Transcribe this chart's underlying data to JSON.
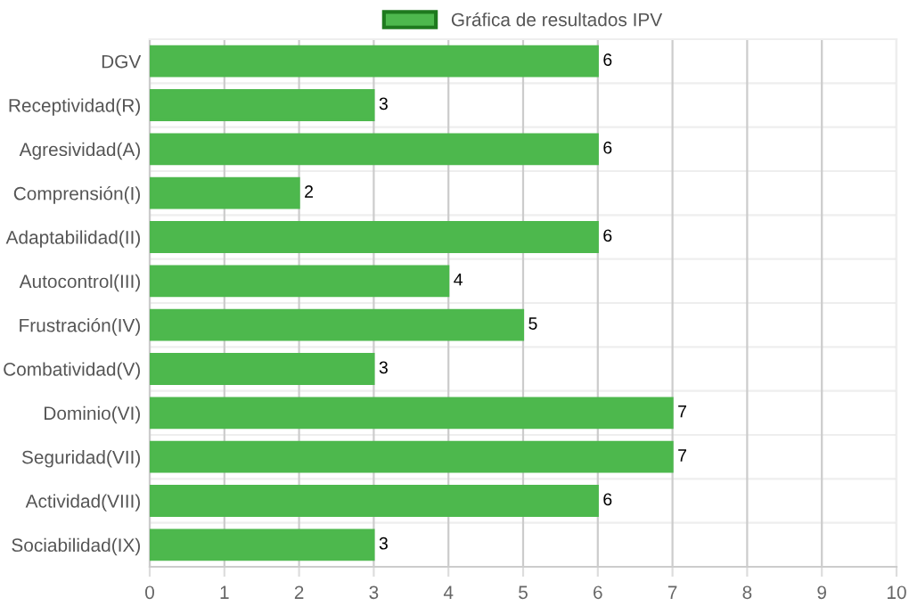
{
  "chart_data": {
    "type": "bar",
    "orientation": "horizontal",
    "categories": [
      "DGV",
      "Receptividad(R)",
      "Agresividad(A)",
      "Comprensión(I)",
      "Adaptabilidad(II)",
      "Autocontrol(III)",
      "Frustración(IV)",
      "Combatividad(V)",
      "Dominio(VI)",
      "Seguridad(VII)",
      "Actividad(VIII)",
      "Sociabilidad(IX)"
    ],
    "series": [
      {
        "name": "Gráfica de resultados IPV",
        "color": "#4db84d",
        "values": [
          6,
          3,
          6,
          2,
          6,
          4,
          5,
          3,
          7,
          7,
          6,
          3
        ]
      }
    ],
    "xlim": [
      0,
      10
    ],
    "xticks": [
      0,
      1,
      2,
      3,
      4,
      5,
      6,
      7,
      8,
      9,
      10
    ],
    "data_labels": true,
    "grid": true,
    "legend": "top"
  }
}
